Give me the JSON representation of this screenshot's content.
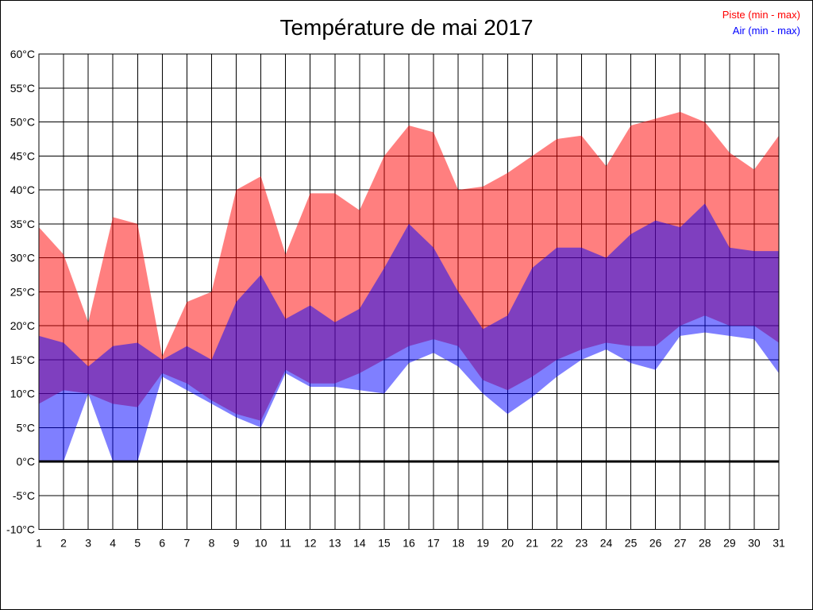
{
  "title": "Température de mai 2017",
  "legend": {
    "piste_label": "Piste (min - max)",
    "air_label": "Air (min - max)"
  },
  "colors": {
    "piste_fill": "#ff0000",
    "air_fill": "#0000ff",
    "fill_opacity": 0.5,
    "grid": "#000000",
    "zero_line": "#000000",
    "background": "#ffffff",
    "text": "#000000"
  },
  "chart_data": {
    "type": "area",
    "title": "Température de mai 2017",
    "xlabel": "",
    "ylabel": "",
    "x": [
      1,
      2,
      3,
      4,
      5,
      6,
      7,
      8,
      9,
      10,
      11,
      12,
      13,
      14,
      15,
      16,
      17,
      18,
      19,
      20,
      21,
      22,
      23,
      24,
      25,
      26,
      27,
      28,
      29,
      30,
      31
    ],
    "x_tick_labels": [
      "1",
      "2",
      "3",
      "4",
      "5",
      "6",
      "7",
      "8",
      "9",
      "10",
      "11",
      "12",
      "13",
      "14",
      "15",
      "16",
      "17",
      "18",
      "19",
      "20",
      "21",
      "22",
      "23",
      "24",
      "25",
      "26",
      "27",
      "28",
      "29",
      "30",
      "31"
    ],
    "ylim": [
      -10,
      60
    ],
    "ytick_step": 5,
    "y_tick_values": [
      60,
      55,
      50,
      45,
      40,
      35,
      30,
      25,
      20,
      15,
      10,
      5,
      0,
      -5,
      -10
    ],
    "y_tick_labels": [
      "60°C",
      "55°C",
      "50°C",
      "45°C",
      "40°C",
      "35°C",
      "30°C",
      "25°C",
      "20°C",
      "15°C",
      "10°C",
      "5°C",
      "0°C",
      "-5°C",
      "-10°C"
    ],
    "grid": true,
    "legend_position": "top-right",
    "series": [
      {
        "name": "Piste max",
        "band": "piste",
        "values": [
          34.5,
          30.5,
          20.5,
          36,
          35,
          15.5,
          23.5,
          25,
          40,
          42,
          30.5,
          39.5,
          39.5,
          37,
          45,
          49.5,
          48.5,
          40,
          40.5,
          42.5,
          45,
          47.5,
          48,
          43.5,
          49.5,
          50.5,
          51.5,
          50,
          45.5,
          43,
          48
        ]
      },
      {
        "name": "Piste min",
        "band": "piste",
        "values": [
          8.5,
          10.5,
          10,
          8.5,
          8,
          13,
          11.5,
          9,
          7,
          6,
          13.5,
          11.5,
          11.5,
          13,
          15,
          17,
          18,
          17,
          12,
          10.5,
          12.5,
          15,
          16.5,
          17.5,
          17,
          17,
          20,
          21.5,
          20,
          20,
          17.5
        ]
      },
      {
        "name": "Air max",
        "band": "air",
        "values": [
          18.5,
          17.5,
          14,
          17,
          17.5,
          15,
          17,
          15,
          23.5,
          27.5,
          21,
          23,
          20.5,
          22.5,
          28.5,
          35,
          31.5,
          25,
          19.5,
          21.5,
          28.5,
          31.5,
          31.5,
          30,
          33.5,
          35.5,
          34.5,
          38,
          31.5,
          31,
          31
        ]
      },
      {
        "name": "Air min",
        "band": "air",
        "values": [
          0,
          0,
          10,
          0,
          0,
          12.5,
          10.5,
          8.5,
          6.5,
          5,
          13,
          11,
          11,
          10.5,
          10,
          14.5,
          16,
          14,
          10,
          7,
          9.5,
          12.5,
          15,
          16.5,
          14.5,
          13.5,
          18.5,
          19,
          18.5,
          18,
          13
        ]
      }
    ]
  }
}
